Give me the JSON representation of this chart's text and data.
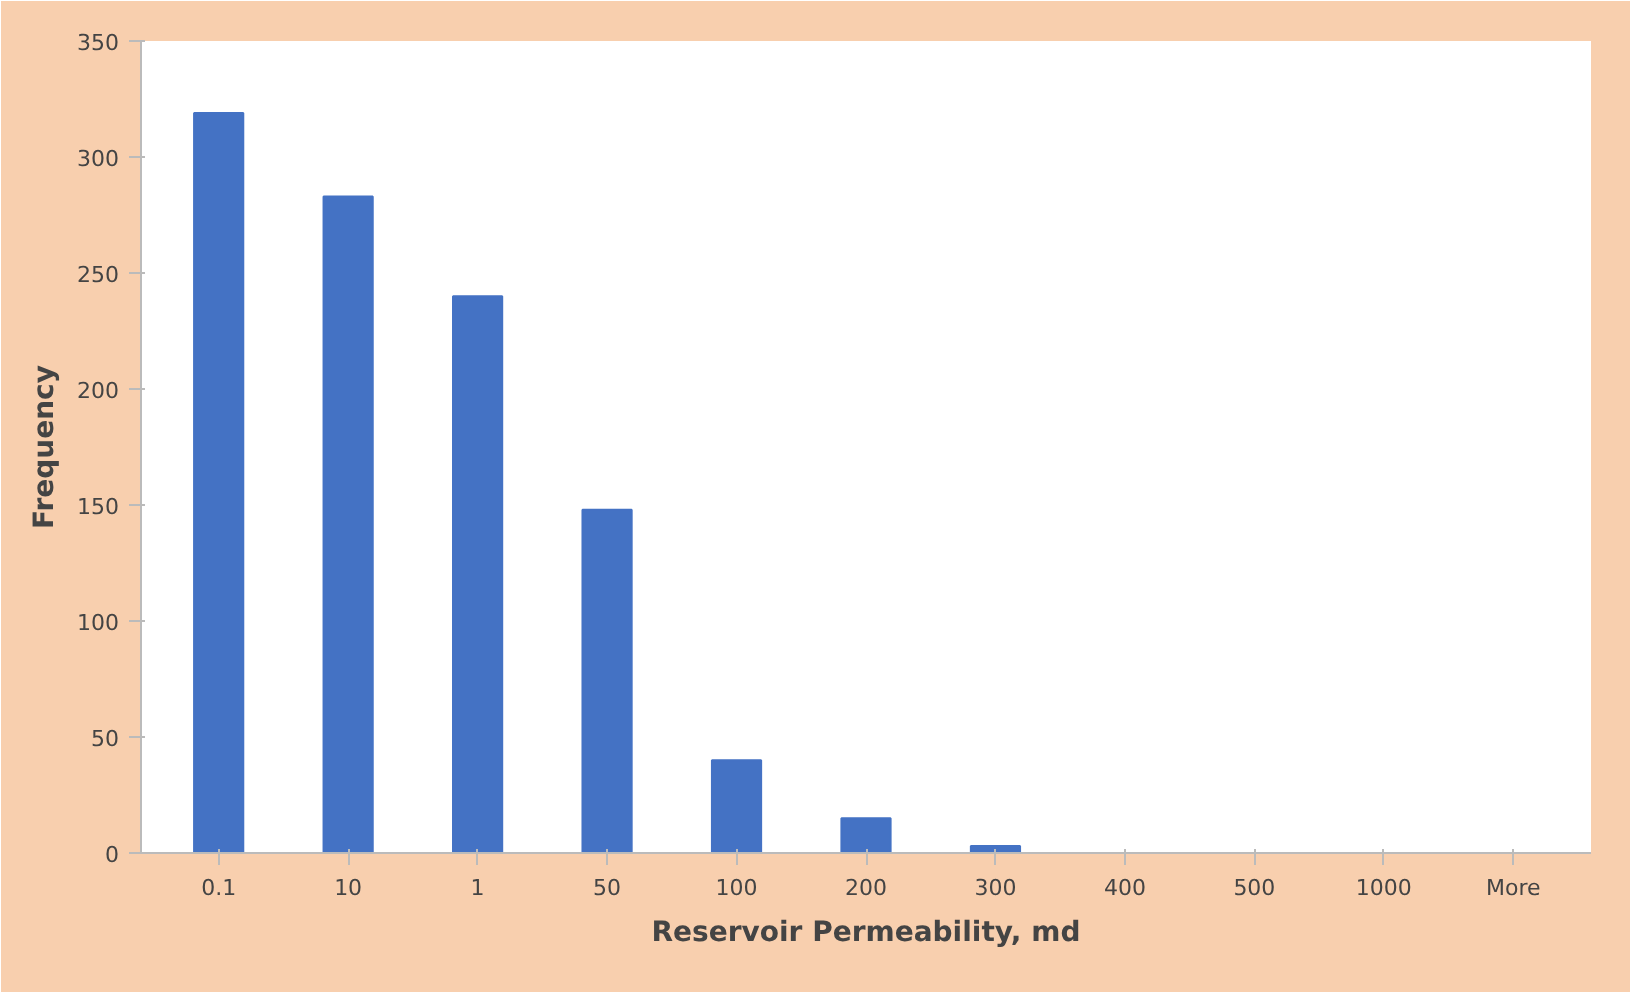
{
  "chart_data": {
    "type": "bar",
    "xlabel": "Reservoir Permeability, md",
    "ylabel": "Frequency",
    "categories": [
      "0.1",
      "10",
      "1",
      "50",
      "100",
      "200",
      "300",
      "400",
      "500",
      "1000",
      "More"
    ],
    "values": [
      319,
      283,
      240,
      148,
      40,
      15,
      3,
      0,
      0,
      0,
      0
    ],
    "color": "#4472c4",
    "ylim": [
      0,
      350
    ],
    "yticks": [
      0,
      50,
      100,
      150,
      200,
      250,
      300,
      350
    ],
    "grid": false
  }
}
